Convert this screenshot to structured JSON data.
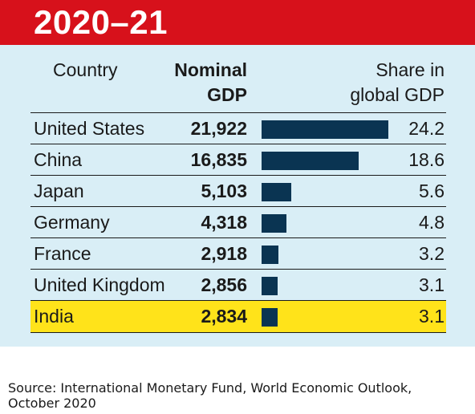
{
  "title": "2020–21",
  "headers": {
    "country": "Country",
    "gdp_line1": "Nominal",
    "gdp_line2": "GDP",
    "share_line1": "Share in",
    "share_line2": "global GDP"
  },
  "chart_data": {
    "type": "table",
    "columns": [
      "Country",
      "Nominal GDP",
      "Share in global GDP"
    ],
    "rows": [
      {
        "country": "United States",
        "gdp": "21,922",
        "share": 24.2,
        "share_label": "24.2"
      },
      {
        "country": "China",
        "gdp": "16,835",
        "share": 18.6,
        "share_label": "18.6"
      },
      {
        "country": "Japan",
        "gdp": "5,103",
        "share": 5.6,
        "share_label": "5.6"
      },
      {
        "country": "Germany",
        "gdp": "4,318",
        "share": 4.8,
        "share_label": "4.8"
      },
      {
        "country": "France",
        "gdp": "2,918",
        "share": 3.2,
        "share_label": "3.2"
      },
      {
        "country": "United Kingdom",
        "gdp": "2,856",
        "share": 3.1,
        "share_label": "3.1"
      },
      {
        "country": "India",
        "gdp": "2,834",
        "share": 3.1,
        "share_label": "3.1",
        "highlight": true
      }
    ],
    "bar_max": 24.2
  },
  "colors": {
    "title_bg": "#d7111b",
    "panel_bg": "#d9eef6",
    "bar": "#0a3452",
    "highlight": "#ffe31a"
  },
  "source": "Source: International Monetary Fund, World Economic Outlook, October 2020"
}
